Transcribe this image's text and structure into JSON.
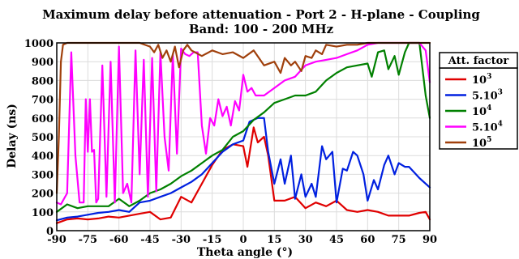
{
  "chart_data": {
    "type": "line",
    "title": "Maximum delay before attenuation - Port 2 - H-plane - Coupling",
    "subtitle": "Band: 100 - 200 MHz",
    "xlabel": "Theta angle (°)",
    "ylabel": "Delay (ns)",
    "xlim": [
      -90,
      90
    ],
    "ylim": [
      0,
      1000
    ],
    "xticks": [
      -90,
      -75,
      -60,
      -45,
      -30,
      -15,
      0,
      15,
      30,
      45,
      60,
      75,
      90
    ],
    "yticks": [
      0,
      100,
      200,
      300,
      400,
      500,
      600,
      700,
      800,
      900,
      1000
    ],
    "grid": true,
    "legend": {
      "title": "Att. factor",
      "placement": "outside-top-right"
    },
    "series": [
      {
        "name": "10^3",
        "label_base": "10",
        "label_exp": "3",
        "color": "#e00000",
        "x": [
          -90,
          -85,
          -80,
          -75,
          -70,
          -65,
          -60,
          -55,
          -50,
          -45,
          -40,
          -35,
          -30,
          -25,
          -20,
          -15,
          -10,
          -5,
          0,
          2,
          5,
          7,
          10,
          12,
          15,
          20,
          25,
          30,
          35,
          40,
          45,
          50,
          55,
          60,
          65,
          70,
          75,
          80,
          85,
          88,
          90
        ],
        "y": [
          40,
          60,
          65,
          60,
          65,
          75,
          70,
          80,
          90,
          100,
          60,
          70,
          180,
          150,
          250,
          350,
          430,
          460,
          450,
          340,
          550,
          470,
          500,
          400,
          160,
          160,
          180,
          120,
          150,
          130,
          160,
          110,
          100,
          110,
          100,
          80,
          80,
          80,
          95,
          100,
          60
        ]
      },
      {
        "name": "5.10^3",
        "label_base": "5.10",
        "label_exp": "3",
        "color": "#0020e0",
        "x": [
          -90,
          -85,
          -80,
          -75,
          -70,
          -65,
          -60,
          -55,
          -50,
          -45,
          -40,
          -35,
          -30,
          -25,
          -20,
          -15,
          -10,
          -5,
          0,
          3,
          7,
          10,
          12,
          15,
          18,
          20,
          23,
          25,
          28,
          30,
          33,
          35,
          38,
          40,
          43,
          45,
          48,
          50,
          53,
          55,
          58,
          60,
          63,
          65,
          68,
          70,
          73,
          75,
          78,
          80,
          85,
          90
        ],
        "y": [
          55,
          70,
          75,
          85,
          95,
          100,
          110,
          100,
          150,
          160,
          180,
          200,
          230,
          260,
          300,
          360,
          420,
          460,
          480,
          580,
          600,
          600,
          420,
          250,
          380,
          250,
          400,
          170,
          300,
          180,
          250,
          180,
          450,
          380,
          420,
          150,
          330,
          320,
          420,
          400,
          300,
          160,
          270,
          220,
          350,
          400,
          300,
          360,
          340,
          340,
          280,
          230
        ]
      },
      {
        "name": "10^4",
        "label_base": "10",
        "label_exp": "4",
        "color": "#008000",
        "x": [
          -90,
          -85,
          -80,
          -75,
          -70,
          -65,
          -60,
          -55,
          -50,
          -45,
          -40,
          -35,
          -30,
          -25,
          -20,
          -15,
          -10,
          -5,
          0,
          5,
          10,
          15,
          20,
          25,
          30,
          35,
          40,
          45,
          50,
          55,
          60,
          62,
          65,
          68,
          70,
          73,
          75,
          78,
          80,
          85,
          88,
          90
        ],
        "y": [
          100,
          140,
          120,
          130,
          130,
          130,
          170,
          130,
          160,
          200,
          220,
          250,
          290,
          320,
          360,
          400,
          430,
          500,
          530,
          590,
          630,
          680,
          700,
          720,
          720,
          740,
          800,
          840,
          870,
          880,
          890,
          820,
          950,
          960,
          860,
          930,
          830,
          950,
          1000,
          1000,
          720,
          600
        ]
      },
      {
        "name": "5.10^4",
        "label_base": "5.10",
        "label_exp": "4",
        "color": "#ff00ff",
        "x": [
          -90,
          -88,
          -85,
          -83,
          -81,
          -79,
          -77,
          -76,
          -75,
          -74,
          -73,
          -72,
          -71,
          -70,
          -68,
          -66,
          -64,
          -62,
          -60,
          -58,
          -56,
          -54,
          -52,
          -50,
          -48,
          -46,
          -44,
          -42,
          -40,
          -38,
          -36,
          -34,
          -32,
          -30,
          -28,
          -26,
          -24,
          -22,
          -20,
          -18,
          -16,
          -14,
          -12,
          -10,
          -8,
          -6,
          -4,
          -2,
          0,
          2,
          4,
          6,
          8,
          10,
          15,
          20,
          25,
          30,
          35,
          40,
          45,
          50,
          55,
          60,
          65,
          70,
          75,
          80,
          85,
          88,
          90
        ],
        "y": [
          150,
          140,
          200,
          950,
          400,
          150,
          150,
          700,
          420,
          700,
          420,
          430,
          150,
          170,
          880,
          180,
          900,
          150,
          980,
          200,
          250,
          150,
          960,
          300,
          910,
          180,
          920,
          210,
          950,
          500,
          320,
          940,
          410,
          970,
          940,
          930,
          950,
          950,
          560,
          410,
          600,
          560,
          700,
          610,
          660,
          560,
          690,
          640,
          830,
          740,
          760,
          720,
          720,
          720,
          760,
          800,
          820,
          880,
          900,
          910,
          920,
          940,
          960,
          990,
          1000,
          1000,
          1000,
          1000,
          1000,
          960,
          790
        ]
      },
      {
        "name": "10^5",
        "label_base": "10",
        "label_exp": "5",
        "color": "#a0400c",
        "x": [
          -90,
          -89,
          -88,
          -87,
          -85,
          -80,
          -70,
          -60,
          -50,
          -45,
          -43,
          -41,
          -39,
          -37,
          -35,
          -33,
          -31,
          -29,
          -27,
          -25,
          -20,
          -15,
          -10,
          -5,
          0,
          5,
          10,
          15,
          18,
          20,
          23,
          25,
          28,
          30,
          33,
          35,
          38,
          40,
          45,
          50,
          55,
          60,
          65,
          70,
          75,
          80,
          85,
          90
        ],
        "y": [
          200,
          500,
          900,
          990,
          1000,
          1000,
          1000,
          1000,
          1000,
          980,
          950,
          990,
          920,
          960,
          900,
          980,
          870,
          960,
          990,
          960,
          930,
          960,
          940,
          950,
          920,
          960,
          880,
          900,
          840,
          920,
          880,
          900,
          850,
          930,
          920,
          960,
          940,
          990,
          980,
          990,
          990,
          1000,
          1000,
          1000,
          1000,
          1000,
          1000,
          1000
        ]
      }
    ]
  }
}
